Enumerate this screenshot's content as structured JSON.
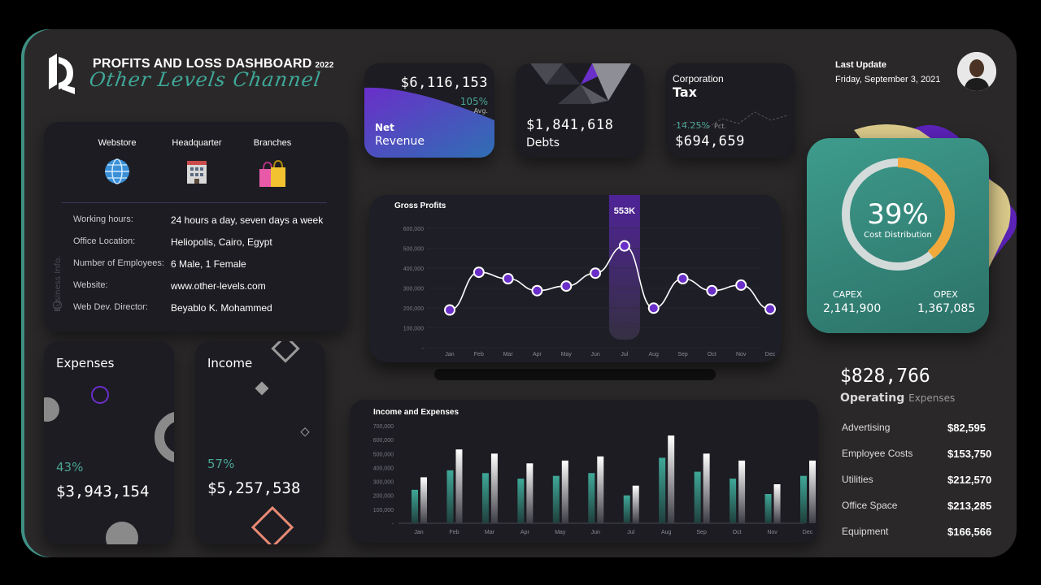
{
  "header": {
    "title": "PROFITS AND LOSS DASHBOARD",
    "year": "2022",
    "subtitle": "Other Levels Channel"
  },
  "update": {
    "label": "Last Update",
    "date": "Friday, September 3, 2021"
  },
  "business": {
    "side_label": "Business Info.",
    "channels": [
      {
        "label": "Webstore",
        "icon": "globe-icon"
      },
      {
        "label": "Headquarter",
        "icon": "office-building-icon"
      },
      {
        "label": "Branches",
        "icon": "shopping-bags-icon"
      }
    ],
    "rows": [
      {
        "key": "Working hours:",
        "value": "24 hours a day, seven days a week"
      },
      {
        "key": "Office Location:",
        "value": "Heliopolis, Cairo, Egypt"
      },
      {
        "key": "Number of Employees:",
        "value": "6 Male, 1 Female"
      },
      {
        "key": "Website:",
        "value": "www.other-levels.com"
      },
      {
        "key": "Web Dev. Director:",
        "value": "Beyablo K. Mohammed"
      }
    ]
  },
  "kpis": {
    "net_revenue": {
      "value": "$6,116,153",
      "pct": "105%",
      "pct_label": "Avg.",
      "label_1": "Net",
      "label_2": "Revenue"
    },
    "debts": {
      "value": "$1,841,618",
      "label": "Debts"
    },
    "tax": {
      "label_1": "Corporation",
      "label_2": "Tax",
      "pct": "14.25%",
      "pct_label": "Pct.",
      "value": "$694,659"
    }
  },
  "cost_distribution": {
    "pct": "39%",
    "pct_value": 0.39,
    "label": "Cost Distribution",
    "capex_label": "CAPEX",
    "capex_value": "2,141,900",
    "opex_label": "OPEX",
    "opex_value": "1,367,085"
  },
  "expenses": {
    "title": "Expenses",
    "pct": "43%",
    "value": "$3,943,154"
  },
  "income": {
    "title": "Income",
    "pct": "57%",
    "value": "$5,257,538"
  },
  "operating": {
    "total": "$828,766",
    "label_bold": "Operating",
    "label_light": "Expenses",
    "items": [
      {
        "key": "Advertising",
        "value": "$82,595"
      },
      {
        "key": "Employee Costs",
        "value": "$153,750"
      },
      {
        "key": "Utilities",
        "value": "$212,570"
      },
      {
        "key": "Office Space",
        "value": "$213,285"
      },
      {
        "key": "Equipment",
        "value": "$166,566"
      }
    ]
  },
  "colors": {
    "teal": "#3fa898",
    "purple": "#6a2fc9",
    "orange": "#f2a93b",
    "salmon": "#e88a73"
  },
  "chart_data": [
    {
      "type": "line",
      "title": "Gross Profits",
      "categories": [
        "Jan",
        "Feb",
        "Mar",
        "Apr",
        "May",
        "Jun",
        "Jul",
        "Aug",
        "Sep",
        "Oct",
        "Nov",
        "Dec"
      ],
      "values": [
        205000,
        410000,
        375000,
        310000,
        335000,
        405000,
        553000,
        215000,
        375000,
        310000,
        340000,
        210000
      ],
      "y_ticks": [
        "600,000",
        "500,000",
        "400,000",
        "300,000",
        "200,000",
        "100,000",
        "-"
      ],
      "ylim": [
        0,
        600000
      ],
      "highlight_label": "553K",
      "highlight_index": 6
    },
    {
      "type": "bar",
      "title": "Income and Expenses",
      "categories": [
        "Jan",
        "Feb",
        "Mar",
        "Apr",
        "May",
        "Jun",
        "Jul",
        "Aug",
        "Sep",
        "Oct",
        "Nov",
        "Dec"
      ],
      "series": [
        {
          "values": [
            240000,
            380000,
            360000,
            320000,
            340000,
            360000,
            200000,
            470000,
            370000,
            320000,
            210000,
            340000
          ]
        },
        {
          "values": [
            330000,
            530000,
            500000,
            430000,
            450000,
            480000,
            270000,
            630000,
            500000,
            450000,
            280000,
            450000
          ]
        }
      ],
      "y_ticks": [
        "700,000",
        "600,000",
        "500,000",
        "400,000",
        "300,000",
        "200,000",
        "100,000",
        "-"
      ],
      "ylim": [
        0,
        700000
      ]
    }
  ]
}
